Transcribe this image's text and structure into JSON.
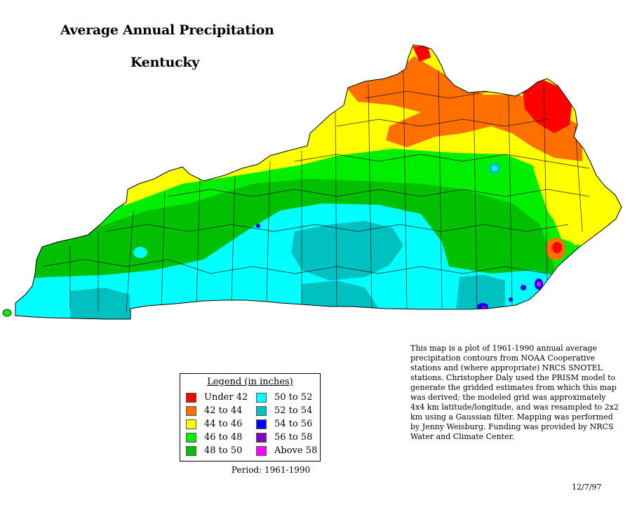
{
  "title": "Average Annual Precipitation",
  "subtitle": "Kentucky",
  "legend": {
    "title": "Legend (in inches)",
    "items": [
      {
        "label": "Under 42",
        "color": "#ff0000"
      },
      {
        "label": "42 to 44",
        "color": "#ff7000"
      },
      {
        "label": "44 to 46",
        "color": "#ffff00"
      },
      {
        "label": "46 to 48",
        "color": "#00ee00"
      },
      {
        "label": "48 to 50",
        "color": "#00c000"
      },
      {
        "label": "50 to 52",
        "color": "#00ffff"
      },
      {
        "label": "52 to 54",
        "color": "#00c0c0"
      },
      {
        "label": "54 to 56",
        "color": "#0000ff"
      },
      {
        "label": "56 to 58",
        "color": "#8000c0"
      },
      {
        "label": "Above 58",
        "color": "#ff00ff"
      }
    ]
  },
  "period": "Period: 1961-1990",
  "note": "This map is a plot of 1961-1990 annual average precipitation contours from NOAA Cooperative stations and (where appropriate) NRCS SNOTEL stations. Christopher Daly used the PRISM model to generate the gridded estimates from which this map was derived; the modeled grid was approximately 4x4 km latitude/longitude, and was resampled to 2x2 km using a Gaussian filter. Mapping was performed by Jenny Weisburg. Funding was provided by NRCS Water and Climate Center.",
  "date": "12/7/97"
}
